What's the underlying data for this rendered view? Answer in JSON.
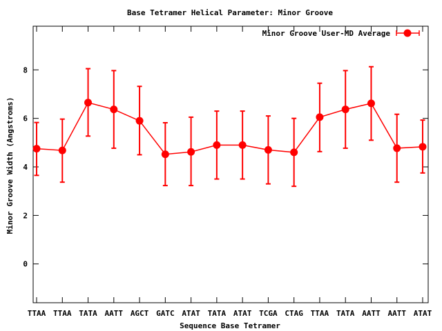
{
  "chart_data": {
    "type": "line",
    "title": "Base Tetramer Helical Parameter: Minor Groove",
    "xlabel": "Sequence Base Tetramer",
    "ylabel": "Minor Groove Width (Angstroms)",
    "categories": [
      "TTAA",
      "TTAA",
      "TATA",
      "AATT",
      "AGCT",
      "GATC",
      "ATAT",
      "TATA",
      "ATAT",
      "TCGA",
      "CTAG",
      "TTAA",
      "TATA",
      "AATT",
      "AATT",
      "ATAT"
    ],
    "ylim": [
      -1.6,
      9.8
    ],
    "yticks": [
      0,
      2,
      4,
      6,
      8
    ],
    "grid": false,
    "legend_position": "top-right",
    "series": [
      {
        "name": "Minor Groove User-MD Average",
        "color": "#ff0000",
        "values": [
          4.75,
          4.68,
          6.65,
          6.37,
          5.9,
          4.52,
          4.62,
          4.9,
          4.9,
          4.7,
          4.6,
          6.05,
          6.37,
          6.62,
          4.77,
          4.83
        ],
        "err_low": [
          3.65,
          3.37,
          5.27,
          4.77,
          4.5,
          3.23,
          3.23,
          3.5,
          3.5,
          3.3,
          3.2,
          4.63,
          4.77,
          5.1,
          3.37,
          3.75
        ],
        "err_high": [
          5.83,
          5.97,
          8.05,
          7.97,
          7.32,
          5.82,
          6.05,
          6.3,
          6.3,
          6.1,
          6.0,
          7.45,
          7.97,
          8.13,
          6.17,
          5.93
        ]
      }
    ]
  }
}
